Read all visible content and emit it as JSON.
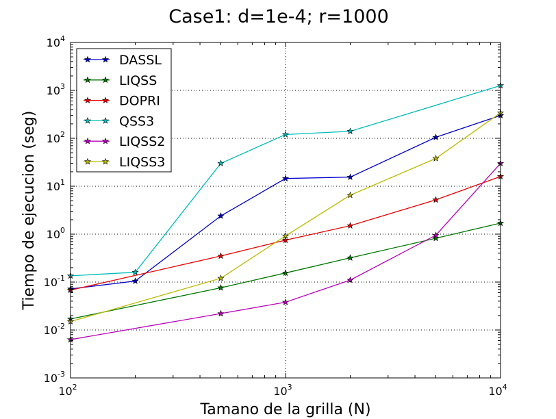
{
  "chart_data": {
    "type": "line",
    "title": "Case1: d=1e-4; r=1000",
    "xlabel": "Tamano de la grilla (N)",
    "ylabel": "Tiempo de ejecucion (seg)",
    "xscale": "log",
    "yscale": "log",
    "xlim": [
      100,
      10000
    ],
    "ylim": [
      0.001,
      10000
    ],
    "x_ticks": [
      {
        "base": "10",
        "exp": "2"
      },
      {
        "base": "10",
        "exp": "3"
      },
      {
        "base": "10",
        "exp": "4"
      }
    ],
    "y_ticks": [
      {
        "base": "10",
        "exp": "-3"
      },
      {
        "base": "10",
        "exp": "-2"
      },
      {
        "base": "10",
        "exp": "-1"
      },
      {
        "base": "10",
        "exp": "0"
      },
      {
        "base": "10",
        "exp": "1"
      },
      {
        "base": "10",
        "exp": "2"
      },
      {
        "base": "10",
        "exp": "3"
      },
      {
        "base": "10",
        "exp": "4"
      }
    ],
    "grid": true,
    "legend_position": "top-left",
    "series": [
      {
        "name": "DASSL",
        "color": "#0000cc",
        "x": [
          100,
          200,
          500,
          1000,
          2000,
          5000,
          10000
        ],
        "y": [
          0.072,
          0.105,
          2.4,
          14.5,
          15.5,
          105,
          300
        ]
      },
      {
        "name": "LIQSS",
        "color": "#007700",
        "x": [
          100,
          500,
          1000,
          2000,
          5000,
          10000
        ],
        "y": [
          0.017,
          0.076,
          0.155,
          0.32,
          0.82,
          1.7
        ]
      },
      {
        "name": "DOPRI",
        "color": "#ee0000",
        "x": [
          100,
          500,
          1000,
          2000,
          5000,
          10000
        ],
        "y": [
          0.068,
          0.35,
          0.75,
          1.5,
          5.2,
          16
        ]
      },
      {
        "name": "QSS3",
        "color": "#00bbbb",
        "x": [
          100,
          200,
          500,
          1000,
          2000,
          10000
        ],
        "y": [
          0.135,
          0.16,
          30,
          120,
          140,
          1260
        ]
      },
      {
        "name": "LIQSS2",
        "color": "#bb00bb",
        "x": [
          100,
          500,
          1000,
          2000,
          5000,
          10000
        ],
        "y": [
          0.0063,
          0.022,
          0.038,
          0.11,
          0.95,
          30
        ]
      },
      {
        "name": "LIQSS3",
        "color": "#bbbb00",
        "x": [
          100,
          500,
          1000,
          2000,
          5000,
          10000
        ],
        "y": [
          0.015,
          0.12,
          0.92,
          6.5,
          38,
          340
        ]
      }
    ]
  }
}
